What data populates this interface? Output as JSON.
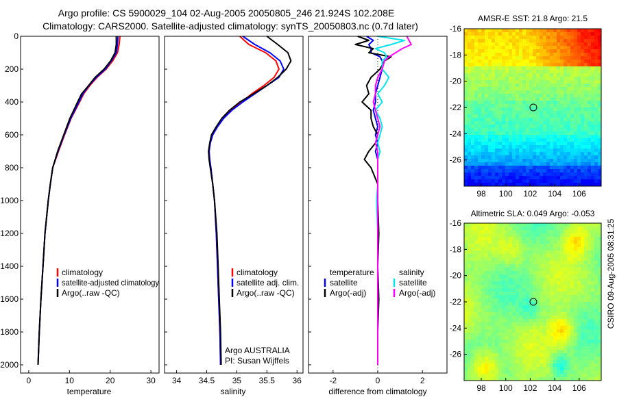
{
  "header": {
    "title_line1": "Argo profile: CS 5900029_104 02-Aug-2005 20050805_246 21.924S 102.208E",
    "title_line2": "Climatology: CARS2000. Satellite-adjusted climatology: synTS_20050803.nc (0.7d later)"
  },
  "colors": {
    "climatology": "#ff0000",
    "satellite": "#0000ff",
    "argo": "#000000",
    "diff_salinity_satellite": "#00e5ee",
    "diff_salinity_argo": "#ff00ff"
  },
  "watermark": "CSIRO 09-Aug-2005 08:31:25",
  "chart_data": [
    {
      "id": "temperature",
      "type": "line",
      "xlabel": "temperature",
      "xlim": [
        -2,
        32
      ],
      "ylim": [
        2050,
        0
      ],
      "xticks": [
        "0",
        "10",
        "20",
        "30"
      ],
      "yticks": [
        "0",
        "200",
        "400",
        "600",
        "800",
        "1000",
        "1200",
        "1400",
        "1600",
        "1800",
        "2000"
      ],
      "y": [
        0,
        50,
        100,
        150,
        200,
        250,
        300,
        350,
        400,
        500,
        600,
        700,
        800,
        900,
        1000,
        1200,
        1400,
        1600,
        1800,
        2000
      ],
      "legend": [
        "climatology",
        "satellite-adjusted climatology",
        "Argo(..raw -QC)"
      ],
      "series": [
        {
          "name": "climatology",
          "color": "#ff0000",
          "values": [
            22.4,
            22.2,
            21.8,
            20.6,
            19.0,
            16.8,
            15.0,
            13.5,
            12.5,
            10.4,
            8.8,
            7.3,
            5.9,
            5.3,
            4.8,
            4.0,
            3.5,
            3.0,
            2.6,
            2.3
          ]
        },
        {
          "name": "satellite-adjusted climatology",
          "color": "#0000ff",
          "values": [
            21.9,
            21.8,
            21.5,
            20.3,
            18.8,
            16.6,
            14.8,
            13.3,
            12.3,
            10.3,
            8.7,
            7.2,
            5.9,
            5.3,
            4.8,
            4.0,
            3.5,
            3.0,
            2.6,
            2.3
          ]
        },
        {
          "name": "Argo(..raw -QC)",
          "color": "#000000",
          "values": [
            21.5,
            21.5,
            21.2,
            20.1,
            18.5,
            16.3,
            14.7,
            13.0,
            12.0,
            10.1,
            8.6,
            7.1,
            5.9,
            5.3,
            4.8,
            4.0,
            3.5,
            3.0,
            2.6,
            2.3
          ]
        }
      ]
    },
    {
      "id": "salinity",
      "type": "line",
      "xlabel": "salinity",
      "xlim": [
        33.8,
        36.1
      ],
      "ylim": [
        2050,
        0
      ],
      "xticks": [
        "34",
        "34.5",
        "35",
        "35.5",
        "36"
      ],
      "y": [
        0,
        50,
        100,
        150,
        200,
        250,
        300,
        350,
        400,
        450,
        500,
        550,
        600,
        650,
        700,
        750,
        800,
        900,
        1000,
        1200,
        1400,
        1600,
        1800,
        2000
      ],
      "legend": [
        "climatology",
        "satellite adj. clim.",
        "Argo(..raw -QC)"
      ],
      "series": [
        {
          "name": "climatology",
          "color": "#ff0000",
          "values": [
            35.05,
            35.2,
            35.48,
            35.65,
            35.7,
            35.62,
            35.45,
            35.25,
            35.08,
            34.9,
            34.78,
            34.68,
            34.6,
            34.56,
            34.54,
            34.55,
            34.57,
            34.6,
            34.63,
            34.66,
            34.68,
            34.7,
            34.72,
            34.73
          ]
        },
        {
          "name": "satellite adj. clim.",
          "color": "#0000ff",
          "values": [
            35.1,
            35.3,
            35.55,
            35.72,
            35.78,
            35.7,
            35.5,
            35.3,
            35.1,
            34.92,
            34.78,
            34.68,
            34.6,
            34.56,
            34.54,
            34.55,
            34.57,
            34.6,
            34.63,
            34.66,
            34.68,
            34.7,
            34.72,
            34.73
          ]
        },
        {
          "name": "Argo(..raw -QC)",
          "color": "#000000",
          "values": [
            35.5,
            35.68,
            35.85,
            35.9,
            35.82,
            35.68,
            35.5,
            35.28,
            35.05,
            34.88,
            34.75,
            34.66,
            34.58,
            34.55,
            34.53,
            34.54,
            34.56,
            34.6,
            34.63,
            34.67,
            34.69,
            34.71,
            34.73,
            34.74
          ]
        }
      ],
      "annotations": [
        "Argo AUSTRALIA",
        "PI: Susan Wijffels"
      ]
    },
    {
      "id": "difference",
      "type": "line",
      "xlabel": "difference from climatology",
      "xlim": [
        -3.1,
        3.1
      ],
      "ylim": [
        2050,
        0
      ],
      "xticks": [
        "-2",
        "0",
        "2"
      ],
      "y": [
        0,
        25,
        50,
        75,
        100,
        125,
        150,
        200,
        250,
        300,
        350,
        400,
        450,
        500,
        550,
        600,
        650,
        700,
        750,
        800,
        900,
        1000,
        1200,
        1400,
        1600,
        1800,
        2000
      ],
      "legend_groups": [
        {
          "header": "temperature",
          "items": [
            "satellite",
            "Argo(-adj)"
          ]
        },
        {
          "header": "salinity",
          "items": [
            "satellite",
            "Argo(-adj)"
          ]
        }
      ],
      "series": [
        {
          "name": "temperature satellite",
          "color": "#0000ff",
          "values": [
            -0.5,
            -0.2,
            -0.4,
            -0.3,
            -0.3,
            0.1,
            0.2,
            0.2,
            0.1,
            0.0,
            -0.1,
            -0.1,
            -0.2,
            -0.1,
            0.0,
            -0.1,
            0.0,
            -0.1,
            0.0,
            0.0,
            0.0,
            0.0,
            0.0,
            0.0,
            0.0,
            0.0,
            0.0
          ]
        },
        {
          "name": "temperature Argo(-adj)",
          "color": "#000000",
          "values": [
            -0.9,
            -0.4,
            -1.0,
            -0.2,
            -0.4,
            0.6,
            0.3,
            0.1,
            -0.3,
            -0.5,
            -0.4,
            -0.7,
            -0.3,
            -0.3,
            -0.2,
            0.0,
            -0.1,
            -0.4,
            -0.6,
            -0.3,
            0.0,
            0.0,
            0.05,
            0.0,
            0.05,
            0.0,
            0.0
          ]
        },
        {
          "name": "salinity satellite",
          "color": "#00e5ee",
          "values": [
            0.0,
            1.2,
            0.6,
            -0.1,
            0.3,
            0.4,
            0.2,
            0.2,
            0.5,
            0.3,
            0.0,
            0.2,
            -0.1,
            0.1,
            0.2,
            0.1,
            0.0,
            0.1,
            0.0,
            0.0,
            0.0,
            -0.05,
            0.0,
            0.0,
            0.0,
            0.0,
            0.0
          ]
        },
        {
          "name": "salinity Argo(-adj)",
          "color": "#ff00ff",
          "values": [
            1.3,
            1.4,
            1.5,
            1.1,
            0.8,
            0.5,
            0.3,
            0.2,
            0.0,
            -0.1,
            -0.1,
            -0.2,
            -0.1,
            0.0,
            0.1,
            0.0,
            -0.1,
            0.0,
            0.0,
            0.0,
            0.0,
            0.0,
            0.0,
            0.0,
            0.0,
            0.0,
            0.0
          ]
        }
      ]
    },
    {
      "id": "sst-map",
      "type": "heatmap",
      "title": "AMSR-E SST: 21.8 Argo: 21.5",
      "xlim": [
        96.6,
        107.8
      ],
      "ylim": [
        -28,
        -16
      ],
      "xticks": [
        "98",
        "100",
        "102",
        "104",
        "106"
      ],
      "yticks": [
        "-16",
        "-18",
        "-20",
        "-22",
        "-24",
        "-26"
      ],
      "marker": {
        "lon": 102.208,
        "lat": -21.924
      }
    },
    {
      "id": "sla-map",
      "type": "heatmap",
      "title": "Altimetric SLA: 0.049 Argo: -0.053",
      "xlim": [
        96.6,
        107.8
      ],
      "ylim": [
        -28,
        -16
      ],
      "xticks": [
        "98",
        "100",
        "102",
        "104",
        "106"
      ],
      "yticks": [
        "-16",
        "-18",
        "-20",
        "-22",
        "-24",
        "-26"
      ],
      "marker": {
        "lon": 102.208,
        "lat": -21.924
      }
    }
  ]
}
